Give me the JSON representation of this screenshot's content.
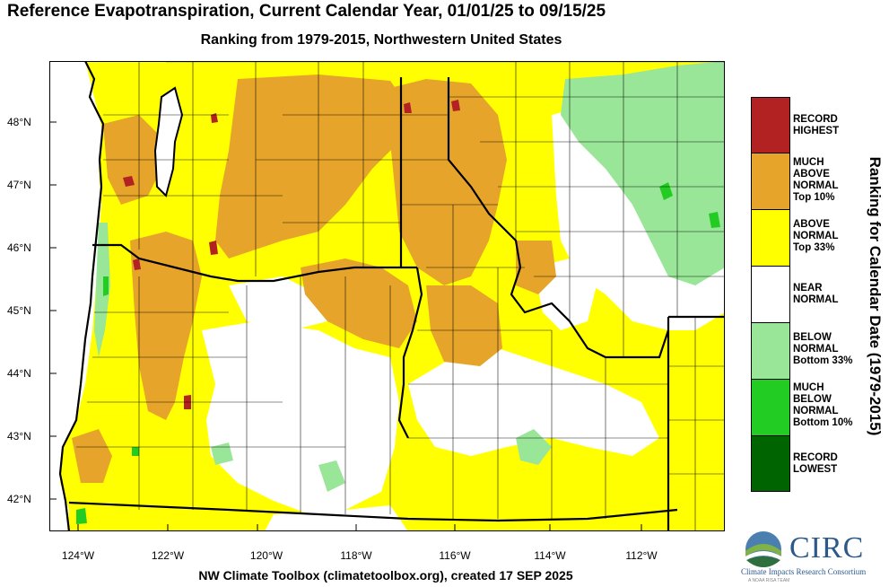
{
  "title": "Reference Evapotranspiration, Current Calendar Year, 01/01/25 to 09/15/25",
  "subtitle": "Ranking from 1979-2015, Northwestern United States",
  "footer": "NW Climate Toolbox (climatetoolbox.org), created 17 SEP 2025",
  "map": {
    "lat_ticks": [
      "48°N",
      "47°N",
      "46°N",
      "45°N",
      "44°N",
      "43°N",
      "42°N"
    ],
    "lon_ticks": [
      "124°W",
      "122°W",
      "120°W",
      "118°W",
      "116°W",
      "114°W",
      "112°W"
    ],
    "colors": {
      "record_highest": "#b22222",
      "much_above": "#e6a52a",
      "above": "#ffff00",
      "near": "#ffffff",
      "below": "#99e699",
      "much_below": "#22cc22",
      "record_lowest": "#006400"
    }
  },
  "legend": {
    "title": "Ranking for Calendar Date (1979-2015)",
    "items": [
      {
        "label_lines": [
          "RECORD",
          "HIGHEST"
        ],
        "color": "#b22222"
      },
      {
        "label_lines": [
          "MUCH",
          "ABOVE",
          "NORMAL",
          "Top 10%"
        ],
        "color": "#e6a52a"
      },
      {
        "label_lines": [
          "ABOVE",
          "NORMAL",
          "Top 33%"
        ],
        "color": "#ffff00"
      },
      {
        "label_lines": [
          "NEAR",
          "NORMAL"
        ],
        "color": "#ffffff"
      },
      {
        "label_lines": [
          "BELOW",
          "NORMAL",
          "Bottom 33%"
        ],
        "color": "#99e699"
      },
      {
        "label_lines": [
          "MUCH",
          "BELOW",
          "NORMAL",
          "Bottom 10%"
        ],
        "color": "#22cc22"
      },
      {
        "label_lines": [
          "RECORD",
          "LOWEST"
        ],
        "color": "#006400"
      }
    ]
  },
  "logo": {
    "name": "CIRC",
    "subtitle": "Climate Impacts Research Consortium",
    "tagline": "A NOAA RISA TEAM"
  }
}
